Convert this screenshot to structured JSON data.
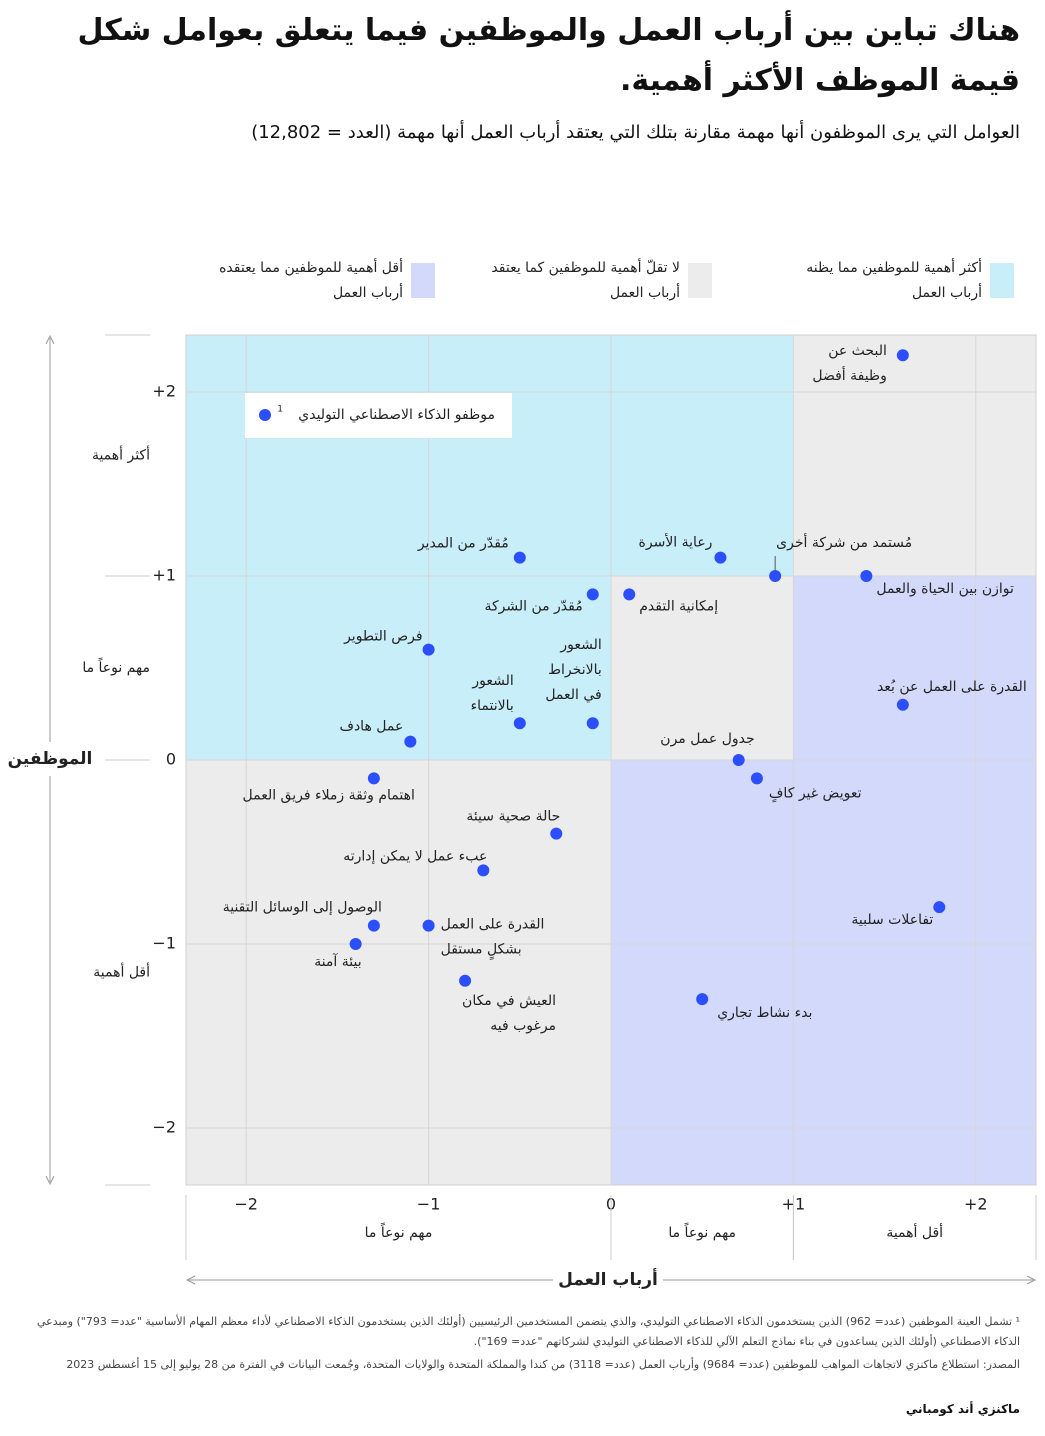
{
  "chart_data": {
    "type": "scatter",
    "title": "هناك تباين بين أرباب العمل والموظفين فيما يتعلق بعوامل شكل قيمة الموظف الأكثر أهمية.",
    "subtitle": "العوامل التي يرى الموظفون أنها مهمة مقارنة بتلك التي يعتقد أرباب العمل أنها مهمة (العدد = 12,802)",
    "x_label": "أرباب العمل",
    "y_label": "الموظفين",
    "xlim": [
      -2.33,
      2.33
    ],
    "ylim": [
      -2.31,
      2.31
    ],
    "xticks": [
      {
        "value": -2,
        "label": "−2"
      },
      {
        "value": -1,
        "label": "−1"
      },
      0,
      {
        "value": 1,
        "label": "+1"
      },
      {
        "value": 2,
        "label": "+2"
      }
    ],
    "yticks": [
      {
        "value": 2,
        "label": "+2"
      },
      {
        "value": 1,
        "label": "+1"
      },
      0,
      {
        "value": -1,
        "label": "−1"
      },
      {
        "value": -2,
        "label": "−2"
      }
    ],
    "grid": true,
    "x_bands": [
      {
        "label": "مهم نوعاً ما",
        "range": [
          -2.33,
          0
        ]
      },
      {
        "label": "مهم نوعاً ما",
        "range": [
          0,
          1
        ]
      },
      {
        "label": "أقل أهمية",
        "range": [
          1,
          2.33
        ]
      }
    ],
    "y_bands": [
      {
        "label": "أكثر أهمية",
        "range": [
          1,
          2.31
        ]
      },
      {
        "label": "مهم نوعاً ما",
        "range": [
          0,
          1
        ]
      },
      {
        "label": "أقل أهمية",
        "range": [
          -2.31,
          0
        ]
      }
    ],
    "legend": [
      {
        "lines": [
          "أكثر أهمية للموظفين مما يظنه",
          "أرباب العمل"
        ],
        "color": "#c8eefa",
        "areas": [
          [
            -2.33,
            0,
            0,
            2.31
          ],
          [
            0,
            1,
            1,
            2.31
          ]
        ]
      },
      {
        "lines": [
          "لا تقلّ أهمية للموظفين كما يعتقد",
          "أرباب العمل"
        ],
        "color": "#ececec",
        "areas": [
          [
            1,
            2.33,
            1,
            2.31
          ],
          [
            0,
            1,
            0,
            1
          ],
          [
            -2.33,
            0,
            -2.31,
            0
          ]
        ]
      },
      {
        "lines": [
          "أقل أهمية للموظفين مما يعتقده",
          "أرباب العمل"
        ],
        "color": "#d3d9fb",
        "areas": [
          [
            0,
            2.33,
            -2.31,
            0
          ],
          [
            1,
            2.33,
            0,
            1
          ]
        ]
      }
    ],
    "series": [
      {
        "name": "موظفو الذكاء الاصطناعي التوليدي",
        "name_note": "1",
        "color": "#2b4eff",
        "x": [
          1.6,
          -0.5,
          0.6,
          0.9,
          1.4,
          -0.1,
          0.1,
          -1.0,
          1.6,
          -0.5,
          -0.1,
          -1.1,
          0.7,
          0.8,
          -1.3,
          -0.3,
          -0.7,
          1.8,
          -1.3,
          -1.0,
          -1.4,
          -0.8,
          0.5
        ],
        "values": [
          2.2,
          1.1,
          1.1,
          1.0,
          1.0,
          0.9,
          0.9,
          0.6,
          0.3,
          0.2,
          0.2,
          0.1,
          0,
          -0.1,
          -0.1,
          -0.4,
          -0.6,
          -0.8,
          -0.9,
          -0.9,
          -1.0,
          -1.2,
          -1.3
        ],
        "labels": [
          [
            "البحث عن",
            "وظيفة أفضل"
          ],
          [
            "مُقدّر من المدير"
          ],
          [
            "رعاية الأسرة"
          ],
          [
            "مُستمد من شركة أخرى"
          ],
          [
            "توازن بين الحياة والعمل"
          ],
          [
            "مُقدّر من الشركة"
          ],
          [
            "إمكانية التقدم"
          ],
          [
            "فرص التطوير"
          ],
          [
            "القدرة على العمل عن بُعد"
          ],
          [
            "الشعور",
            "بالانتماء"
          ],
          [
            "الشعور",
            "بالانخراط",
            "في العمل"
          ],
          [
            "عمل هادف"
          ],
          [
            "جدول عمل مرن"
          ],
          [
            "تعويض غير كافٍ"
          ],
          [
            "اهتمام وثقة زملاء فريق العمل"
          ],
          [
            "حالة صحية سيئة"
          ],
          [
            "عبء عمل لا يمكن إدارته"
          ],
          [
            "تفاعلات سلبية"
          ],
          [
            "الوصول إلى الوسائل التقنية"
          ],
          [
            "القدرة على العمل",
            "بشكلٍ مستقل"
          ],
          [
            "بيئة آمنة"
          ],
          [
            "العيش في مكان",
            "مرغوب فيه"
          ],
          [
            "بدء نشاط تجاري"
          ]
        ]
      }
    ],
    "footnote": "¹ تشمل العينة الموظفين (عدد= 962) الذين يستخدمون الذكاء الاصطناعي التوليدي، والذي يتضمن المستخدمين الرئيسيين (أولئك الذين يستخدمون الذكاء الاصطناعي لأداء معظم المهام الأساسية \"عدد= 793\") ومبدعي الذكاء الاصطناعي (أولئك الذين يساعدون في بناء نماذج التعلم الآلي للذكاء الاصطناعي التوليدي لشركاتهم \"عدد= 169\").",
    "source": "المصدر: استطلاع ماكنزي لاتجاهات المواهب للموظفين (عدد= 9684) وأرباب العمل (عدد= 3118) من كندا والمملكة المتحدة والولايات المتحدة، وجُمعت البيانات في الفترة من 28 يوليو إلى 15 أغسطس 2023",
    "brand": "ماكنزي أند كومباني"
  }
}
